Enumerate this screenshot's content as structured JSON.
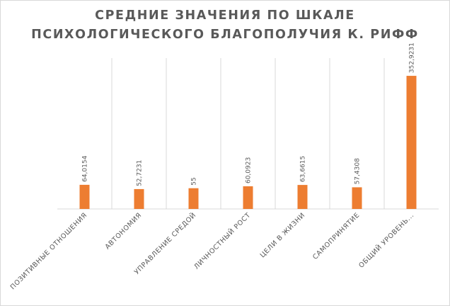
{
  "chart_data": {
    "type": "bar",
    "title_lines": [
      "СРЕДНИЕ ЗНАЧЕНИЯ ПО ШКАЛЕ",
      "ПСИХОЛОГИЧЕСКОГО БЛАГОПОЛУЧИЯ К. РИФФ"
    ],
    "categories": [
      "ПОЗИТИВНЫЕ ОТНОШЕНИЯ",
      "АВТОНОМИЯ",
      "УПРАВЛЕНИЕ СРЕДОЙ",
      "ЛИЧНОСТНЫЙ РОСТ",
      "ЦЕЛИ В ЖИЗНИ",
      "САМОПРИНЯТИЕ",
      "ОБЩИЙ УРОВЕНЬ..."
    ],
    "values": [
      64.0154,
      52.7231,
      55,
      60.0923,
      63.6615,
      57.4308,
      352.9231
    ],
    "value_labels": [
      "64,0154",
      "52,7231",
      "55",
      "60,0923",
      "63,6615",
      "57,4308",
      "352,9231"
    ],
    "bar_color": "#ed7d31",
    "grid": "vertical category separators",
    "legend": "none",
    "ylim": [
      0,
      400
    ]
  }
}
